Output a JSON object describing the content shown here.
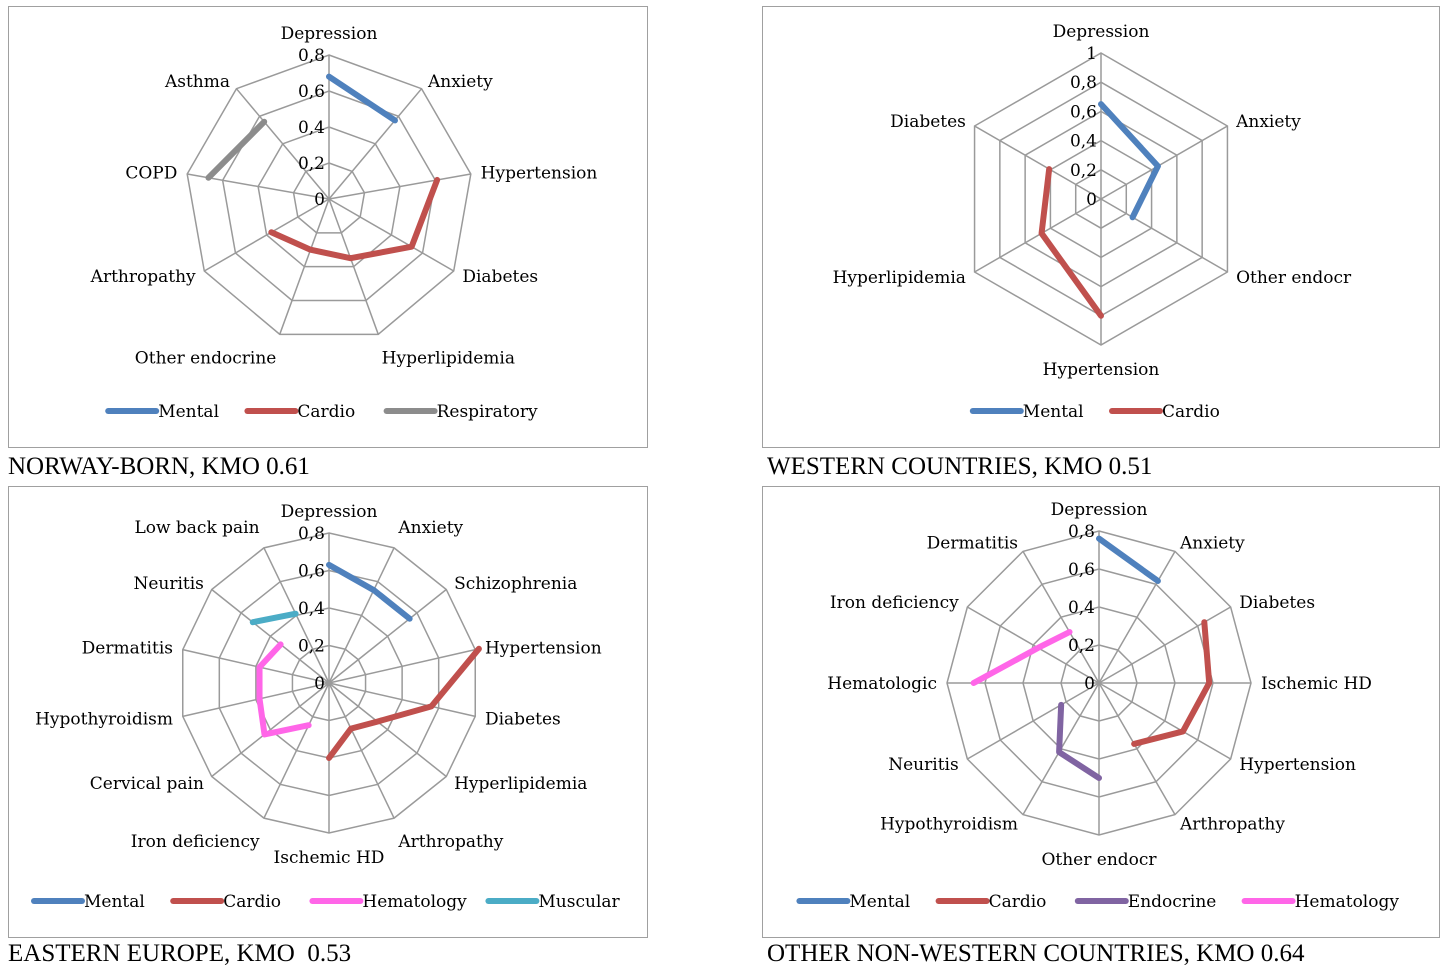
{
  "chart_data": [
    {
      "type": "radar",
      "caption": "NORWAY-BORN, KMO 0.61",
      "axes": [
        "Depression",
        "Anxiety",
        "Hypertension",
        "Diabetes",
        "Hyperlipidemia",
        "Other endocrine",
        "Arthropathy",
        "COPD",
        "Asthma"
      ],
      "radial_ticks": [
        "0",
        "0,2",
        "0,4",
        "0,6",
        "0,8"
      ],
      "rmax": 0.8,
      "series": [
        {
          "name": "Mental",
          "color": "#4f81bd",
          "values": {
            "Depression": 0.68,
            "Anxiety": 0.57
          }
        },
        {
          "name": "Cardio",
          "color": "#c0504d",
          "values": {
            "Hypertension": 0.61,
            "Diabetes": 0.53,
            "Hyperlipidemia": 0.35,
            "Other endocrine": 0.3,
            "Arthropathy": 0.37
          }
        },
        {
          "name": "Respiratory",
          "color": "#8c8c8c",
          "values": {
            "COPD": 0.68,
            "Asthma": 0.56
          }
        }
      ]
    },
    {
      "type": "radar",
      "caption": "WESTERN COUNTRIES, KMO 0.51",
      "axes": [
        "Depression",
        "Anxiety",
        "Other endocr",
        "Hypertension",
        "Hyperlipidemia",
        "Diabetes"
      ],
      "radial_ticks": [
        "0",
        "0,2",
        "0,4",
        "0,6",
        "0,8",
        "1"
      ],
      "rmax": 1.0,
      "series": [
        {
          "name": "Mental",
          "color": "#4f81bd",
          "values": {
            "Depression": 0.65,
            "Anxiety": 0.45,
            "Other endocr": 0.25
          }
        },
        {
          "name": "Cardio",
          "color": "#c0504d",
          "values": {
            "Hypertension": 0.8,
            "Hyperlipidemia": 0.47,
            "Diabetes": 0.41
          }
        }
      ]
    },
    {
      "type": "radar",
      "caption": "EASTERN EUROPE, KMO  0.53",
      "axes": [
        "Depression",
        "Anxiety",
        "Schizophrenia",
        "Hypertension",
        "Diabetes",
        "Hyperlipidemia",
        "Arthropathy",
        "Ischemic HD",
        "Iron deficiency",
        "Cervical pain",
        "Hypothyroidism",
        "Dermatitis",
        "Neuritis",
        "Low back pain"
      ],
      "radial_ticks": [
        "0",
        "0,2",
        "0,4",
        "0,6",
        "0,8"
      ],
      "rmax": 0.8,
      "series": [
        {
          "name": "Mental",
          "color": "#4f81bd",
          "values": {
            "Depression": 0.63,
            "Anxiety": 0.55,
            "Schizophrenia": 0.55
          }
        },
        {
          "name": "Cardio",
          "color": "#c0504d",
          "values": {
            "Hypertension": 0.82,
            "Diabetes": 0.56,
            "Hyperlipidemia": 0.33,
            "Arthropathy": 0.27,
            "Ischemic HD": 0.4
          }
        },
        {
          "name": "Hematology",
          "color": "#ff66e8",
          "values": {
            "Iron deficiency": 0.25,
            "Cervical pain": 0.44,
            "Hypothyroidism": 0.38,
            "Dermatitis": 0.38,
            "Neuritis": 0.33
          }
        },
        {
          "name": "Muscular",
          "color": "#4bacc6",
          "values": {
            "Neuritis": 0.52,
            "Low back pain": 0.41
          }
        }
      ]
    },
    {
      "type": "radar",
      "caption": "OTHER NON-WESTERN COUNTRIES, KMO 0.64",
      "axes": [
        "Depression",
        "Anxiety",
        "Diabetes",
        "Ischemic HD",
        "Hypertension",
        "Arthropathy",
        "Other endocr",
        "Hypothyroidism",
        "Neuritis",
        "Hematologic",
        "Iron deficiency",
        "Dermatitis"
      ],
      "radial_ticks": [
        "0",
        "0,2",
        "0,4",
        "0,6",
        "0,8"
      ],
      "rmax": 0.8,
      "series": [
        {
          "name": "Mental",
          "color": "#4f81bd",
          "values": {
            "Depression": 0.76,
            "Anxiety": 0.62
          }
        },
        {
          "name": "Cardio",
          "color": "#c0504d",
          "values": {
            "Diabetes": 0.64,
            "Ischemic HD": 0.58,
            "Hypertension": 0.51,
            "Arthropathy": 0.37
          }
        },
        {
          "name": "Endocrine",
          "color": "#8064a2",
          "values": {
            "Other endocr": 0.5,
            "Hypothyroidism": 0.42,
            "Neuritis": 0.23
          }
        },
        {
          "name": "Hematology",
          "color": "#ff66e8",
          "values": {
            "Hematologic": 0.66,
            "Iron deficiency": 0.37,
            "Dermatitis": 0.31
          }
        }
      ]
    }
  ]
}
